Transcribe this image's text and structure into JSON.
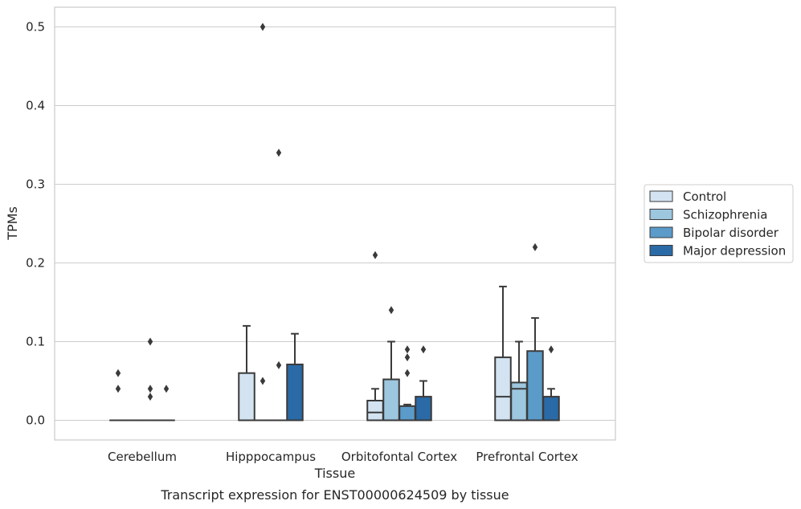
{
  "chart_data": {
    "type": "box",
    "title": "",
    "caption": "Transcript expression for ENST00000624509 by tissue",
    "xlabel": "Tissue",
    "ylabel": "TPMs",
    "ylim": [
      -0.025,
      0.525
    ],
    "yticks": [
      0.0,
      0.1,
      0.2,
      0.3,
      0.4,
      0.5
    ],
    "ytick_labels": [
      "0.0",
      "0.1",
      "0.2",
      "0.3",
      "0.4",
      "0.5"
    ],
    "grid": "horizontal",
    "legend_position": "right",
    "categories": [
      "Cerebellum",
      "Hipppocampus",
      "Orbitofontal Cortex",
      "Prefrontal Cortex"
    ],
    "series": [
      {
        "name": "Control",
        "color": "#d3e3f2",
        "boxes": [
          {
            "q1": 0,
            "median": 0,
            "q3": 0,
            "whisker_low": 0,
            "whisker_high": 0,
            "outliers": [
              0.06,
              0.04
            ]
          },
          {
            "q1": 0,
            "median": 0,
            "q3": 0.06,
            "whisker_low": 0,
            "whisker_high": 0.12,
            "outliers": []
          },
          {
            "q1": 0,
            "median": 0.01,
            "q3": 0.025,
            "whisker_low": 0,
            "whisker_high": 0.04,
            "outliers": [
              0.21
            ]
          },
          {
            "q1": 0,
            "median": 0.03,
            "q3": 0.08,
            "whisker_low": 0,
            "whisker_high": 0.17,
            "outliers": []
          }
        ]
      },
      {
        "name": "Schizophrenia",
        "color": "#9dc6df",
        "boxes": [
          {
            "q1": 0,
            "median": 0,
            "q3": 0,
            "whisker_low": 0,
            "whisker_high": 0,
            "outliers": []
          },
          {
            "q1": 0,
            "median": 0,
            "q3": 0,
            "whisker_low": 0,
            "whisker_high": 0,
            "outliers": [
              0.5,
              0.05
            ]
          },
          {
            "q1": 0,
            "median": 0,
            "q3": 0.052,
            "whisker_low": 0,
            "whisker_high": 0.1,
            "outliers": [
              0.14
            ]
          },
          {
            "q1": 0,
            "median": 0.04,
            "q3": 0.048,
            "whisker_low": 0,
            "whisker_high": 0.1,
            "outliers": []
          }
        ]
      },
      {
        "name": "Bipolar disorder",
        "color": "#5b9bc9",
        "boxes": [
          {
            "q1": 0,
            "median": 0,
            "q3": 0,
            "whisker_low": 0,
            "whisker_high": 0,
            "outliers": [
              0.1,
              0.04,
              0.03
            ]
          },
          {
            "q1": 0,
            "median": 0,
            "q3": 0,
            "whisker_low": 0,
            "whisker_high": 0,
            "outliers": [
              0.34,
              0.07
            ]
          },
          {
            "q1": 0,
            "median": 0,
            "q3": 0.018,
            "whisker_low": 0,
            "whisker_high": 0.02,
            "outliers": [
              0.09,
              0.08,
              0.06
            ]
          },
          {
            "q1": 0,
            "median": 0,
            "q3": 0.088,
            "whisker_low": 0,
            "whisker_high": 0.13,
            "outliers": [
              0.22
            ]
          }
        ]
      },
      {
        "name": "Major depression",
        "color": "#2a6aa6",
        "boxes": [
          {
            "q1": 0,
            "median": 0,
            "q3": 0,
            "whisker_low": 0,
            "whisker_high": 0,
            "outliers": [
              0.04
            ]
          },
          {
            "q1": 0,
            "median": 0,
            "q3": 0.071,
            "whisker_low": 0,
            "whisker_high": 0.11,
            "outliers": []
          },
          {
            "q1": 0,
            "median": 0,
            "q3": 0.03,
            "whisker_low": 0,
            "whisker_high": 0.05,
            "outliers": [
              0.09
            ]
          },
          {
            "q1": 0,
            "median": 0,
            "q3": 0.03,
            "whisker_low": 0,
            "whisker_high": 0.04,
            "outliers": [
              0.09
            ]
          }
        ]
      }
    ]
  },
  "colors": {
    "grid": "#cccccc",
    "frame": "#cccccc",
    "edge": "#3a3a3a",
    "text": "#262626"
  }
}
